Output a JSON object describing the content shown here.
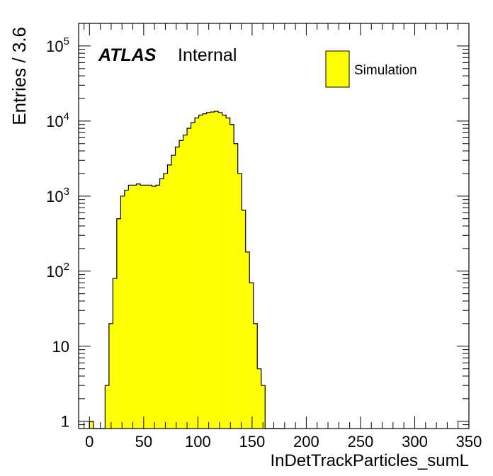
{
  "chart_data": {
    "type": "bar",
    "title": "",
    "xlabel": "InDetTrackParticles_sumL",
    "ylabel": "Entries / 3.6",
    "atlas_label": "ATLAS",
    "atlas_sub": "Internal",
    "log_y": true,
    "ylim": [
      0.8,
      200000
    ],
    "xlim": [
      -10,
      350
    ],
    "bin_width": 3.6,
    "x_ticks": [
      {
        "value": 0,
        "label": "0"
      },
      {
        "value": 50,
        "label": "50"
      },
      {
        "value": 100,
        "label": "100"
      },
      {
        "value": 150,
        "label": "150"
      },
      {
        "value": 200,
        "label": "200"
      },
      {
        "value": 250,
        "label": "250"
      },
      {
        "value": 300,
        "label": "300"
      },
      {
        "value": 350,
        "label": "350"
      }
    ],
    "y_ticks": [
      {
        "value": 1,
        "base": "1",
        "exp": ""
      },
      {
        "value": 10,
        "base": "10",
        "exp": ""
      },
      {
        "value": 100,
        "base": "10",
        "exp": "2"
      },
      {
        "value": 1000,
        "base": "10",
        "exp": "3"
      },
      {
        "value": 10000,
        "base": "10",
        "exp": "4"
      },
      {
        "value": 100000,
        "base": "10",
        "exp": "5"
      }
    ],
    "grid": false,
    "legend_position": "top-right",
    "series": [
      {
        "name": "Simulation",
        "color": "#ffff00",
        "edge_color": "#000000",
        "bin_low_edges": [
          0,
          3.6,
          7.2,
          10.8,
          14.4,
          18,
          21.6,
          25.2,
          28.8,
          32.4,
          36,
          39.6,
          43.2,
          46.8,
          50.4,
          54,
          57.6,
          61.2,
          64.8,
          68.4,
          72,
          75.6,
          79.2,
          82.8,
          86.4,
          90,
          93.6,
          97.2,
          100.8,
          104.4,
          108,
          111.6,
          115.2,
          118.8,
          122.4,
          126,
          129.6,
          133.2,
          136.8,
          140.4,
          144,
          147.6,
          151.2,
          154.8,
          158.4,
          162,
          165.6,
          169.2,
          172.8,
          176.4
        ],
        "values": [
          1,
          0,
          0,
          0,
          3,
          20,
          80,
          500,
          1000,
          1200,
          1400,
          1400,
          1450,
          1400,
          1400,
          1400,
          1350,
          1400,
          1700,
          2000,
          2600,
          3500,
          4500,
          5500,
          6500,
          8000,
          9500,
          11000,
          12000,
          12500,
          13000,
          13200,
          13500,
          13000,
          12000,
          11000,
          9000,
          5000,
          2000,
          650,
          180,
          70,
          20,
          5,
          3,
          0,
          0,
          0,
          0,
          0
        ]
      }
    ]
  }
}
